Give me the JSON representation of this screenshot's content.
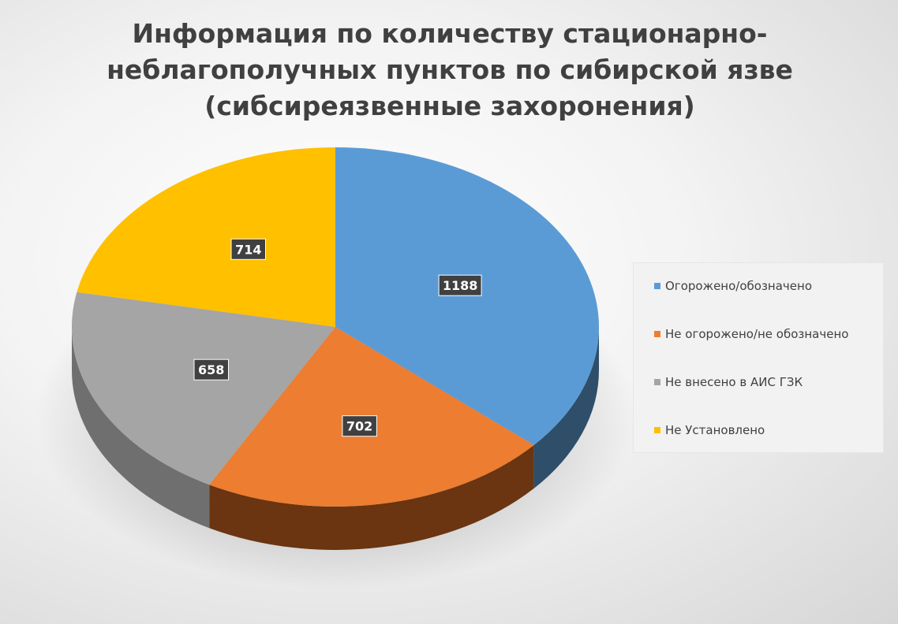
{
  "chart_data": {
    "type": "pie",
    "title": "Информация по количеству стационарно-\nнеблагополучных пунктов по сибирской язве\n(сибсиреязвенные захоронения)",
    "categories": [
      "Огорожено/обозначено",
      "Не огорожено/не обозначено",
      "Не внесено в АИС ГЗК",
      "Не Установлено"
    ],
    "values": [
      1188,
      702,
      658,
      714
    ],
    "data_labels": [
      "1188",
      "702",
      "658",
      "714"
    ],
    "colors": [
      "#5B9BD5",
      "#ED7D31",
      "#A5A5A5",
      "#FFC000"
    ],
    "side_colors": [
      "#2E4E6A",
      "#6A3510",
      "#6F6F6F",
      "#8A6800"
    ],
    "legend_position": "right",
    "style": "3d"
  }
}
